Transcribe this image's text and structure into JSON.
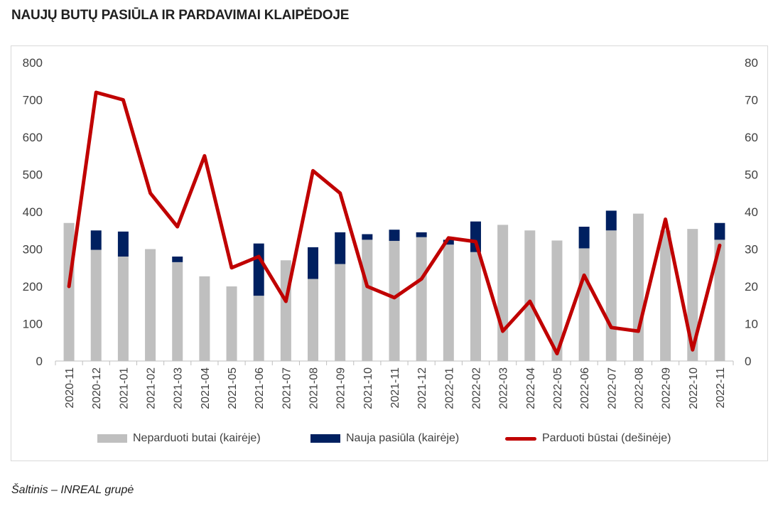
{
  "title": "NAUJŲ BUTŲ PASIŪLA IR PARDAVIMAI KLAIPĖDOJE",
  "source": "Šaltinis – INREAL grupė",
  "colors": {
    "unsold": "#bfbfbf",
    "new_supply": "#002060",
    "sold": "#c00000"
  },
  "chart_data": {
    "type": "bar",
    "stacked": true,
    "categories": [
      "2020-11",
      "2020-12",
      "2021-01",
      "2021-02",
      "2021-03",
      "2021-04",
      "2021-05",
      "2021-06",
      "2021-07",
      "2021-08",
      "2021-09",
      "2021-10",
      "2021-11",
      "2021-12",
      "2022-01",
      "2022-02",
      "2022-03",
      "2022-04",
      "2022-05",
      "2022-06",
      "2022-07",
      "2022-08",
      "2022-09",
      "2022-10",
      "2022-11"
    ],
    "series": [
      {
        "name": "Neparduoti butai (kairėje)",
        "type": "bar",
        "axis": "left",
        "values": [
          370,
          298,
          280,
          300,
          265,
          227,
          200,
          175,
          270,
          220,
          260,
          325,
          322,
          332,
          312,
          292,
          365,
          350,
          323,
          302,
          350,
          395,
          350,
          354,
          325
        ]
      },
      {
        "name": "Nauja pasiūla (kairėje)",
        "type": "bar",
        "axis": "left",
        "values": [
          0,
          52,
          67,
          0,
          15,
          0,
          0,
          140,
          0,
          85,
          85,
          15,
          30,
          13,
          13,
          82,
          0,
          0,
          0,
          58,
          53,
          0,
          0,
          0,
          45
        ]
      },
      {
        "name": "Parduoti būstai (dešinėje)",
        "type": "line",
        "axis": "right",
        "values": [
          20,
          72,
          70,
          45,
          36,
          55,
          25,
          28,
          16,
          51,
          45,
          20,
          17,
          22,
          33,
          32,
          8,
          16,
          2,
          23,
          9,
          8,
          38,
          3,
          31
        ]
      }
    ],
    "left_axis": {
      "ylim": [
        0,
        800
      ],
      "ticks": [
        "0",
        "100",
        "200",
        "300",
        "400",
        "500",
        "600",
        "700",
        "800"
      ]
    },
    "right_axis": {
      "ylim": [
        0,
        80
      ],
      "ticks": [
        "0",
        "10",
        "20",
        "30",
        "40",
        "50",
        "60",
        "70",
        "80"
      ]
    },
    "grid": false,
    "legend_position": "bottom"
  }
}
